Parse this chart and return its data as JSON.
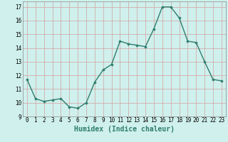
{
  "x": [
    0,
    1,
    2,
    3,
    4,
    5,
    6,
    7,
    8,
    9,
    10,
    11,
    12,
    13,
    14,
    15,
    16,
    17,
    18,
    19,
    20,
    21,
    22,
    23
  ],
  "y": [
    11.7,
    10.3,
    10.1,
    10.2,
    10.3,
    9.7,
    9.6,
    10.0,
    11.5,
    12.4,
    12.8,
    14.5,
    14.3,
    14.2,
    14.1,
    15.4,
    17.0,
    17.0,
    16.2,
    14.5,
    14.4,
    13.0,
    11.7,
    11.6
  ],
  "line_color": "#2e7d6e",
  "marker": "D",
  "marker_size": 1.8,
  "line_width": 1.0,
  "bg_color": "#cff0ec",
  "grid_color": "#d4a0a0",
  "xlabel": "Humidex (Indice chaleur)",
  "xlabel_fontsize": 7,
  "ylim": [
    9,
    17.4
  ],
  "xlim": [
    -0.5,
    23.5
  ],
  "yticks": [
    9,
    10,
    11,
    12,
    13,
    14,
    15,
    16,
    17
  ],
  "xticks": [
    0,
    1,
    2,
    3,
    4,
    5,
    6,
    7,
    8,
    9,
    10,
    11,
    12,
    13,
    14,
    15,
    16,
    17,
    18,
    19,
    20,
    21,
    22,
    23
  ],
  "tick_fontsize": 5.5
}
